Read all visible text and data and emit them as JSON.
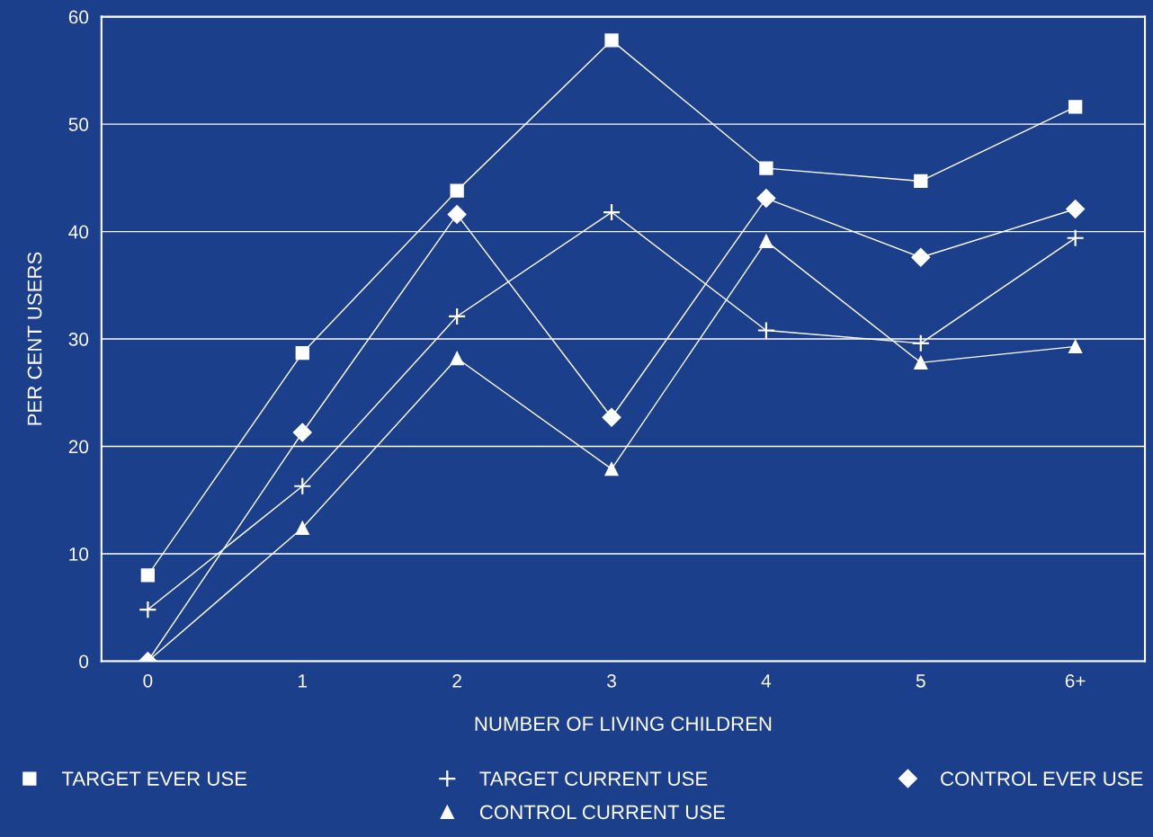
{
  "chart_data": {
    "type": "line",
    "xlabel": "NUMBER OF LIVING CHILDREN",
    "ylabel": "PER CENT USERS",
    "categories": [
      "0",
      "1",
      "2",
      "3",
      "4",
      "5",
      "6+"
    ],
    "series": [
      {
        "name": "TARGET EVER USE",
        "color": "#ffffff",
        "marker": "square",
        "values": [
          8,
          28.7,
          43.8,
          57.8,
          45.9,
          44.7,
          51.6
        ]
      },
      {
        "name": "TARGET CURRENT USE",
        "color": "#ffffff",
        "marker": "cross",
        "values": [
          4.8,
          16.3,
          32.1,
          41.8,
          30.8,
          29.6,
          39.4
        ]
      },
      {
        "name": "CONTROL EVER USE",
        "color": "#ffffff",
        "marker": "diamond",
        "values": [
          0,
          21.3,
          41.6,
          22.7,
          43.1,
          37.6,
          42.1
        ]
      },
      {
        "name": "CONTROL CURRENT USE",
        "color": "#ffffff",
        "marker": "triangle",
        "values": [
          0,
          12.4,
          28.2,
          17.9,
          39.1,
          27.8,
          29.3
        ]
      }
    ],
    "ylim": [
      0,
      60
    ],
    "yticks": [
      0,
      10,
      20,
      30,
      40,
      50,
      60
    ],
    "grid": "y",
    "legend": "bottom",
    "line_style": "solid"
  }
}
